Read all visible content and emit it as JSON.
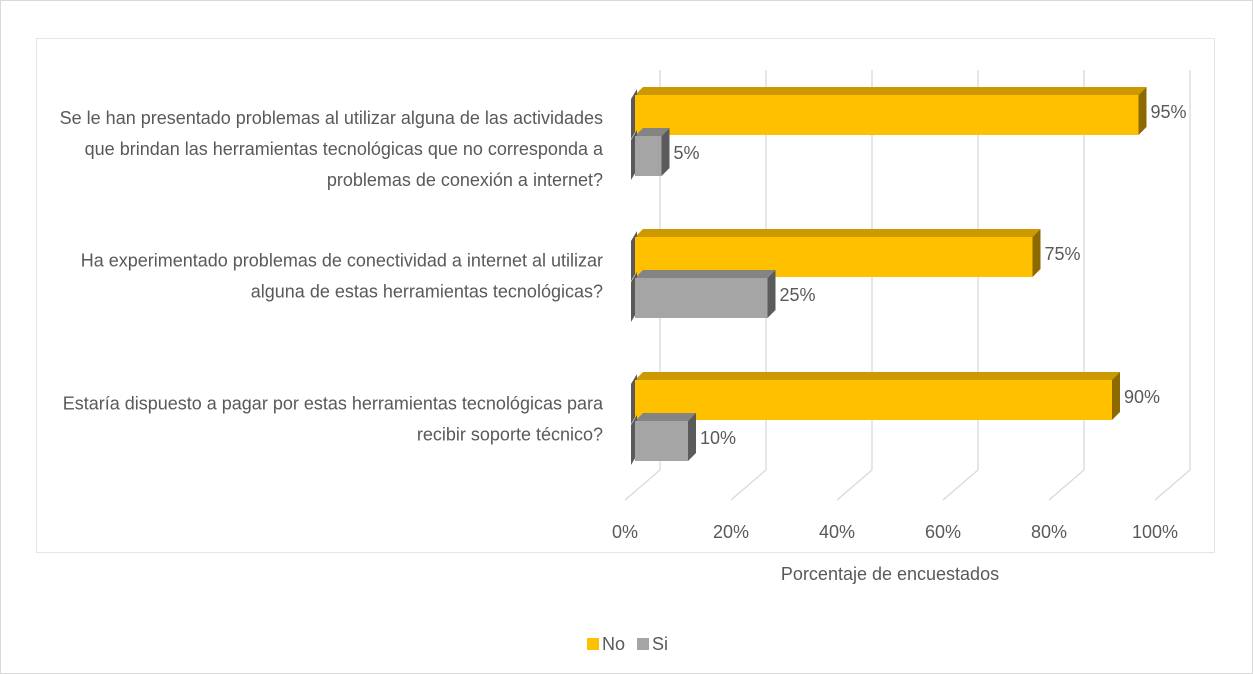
{
  "chart_data": {
    "type": "bar3d_horizontal",
    "categories": [
      "Se le han presentado problemas al utilizar alguna de las actividades que brindan las herramientas tecnológicas que no corresponda a problemas de conexión a internet?",
      "Ha experimentado problemas de conectividad a internet al utilizar alguna de estas herramientas tecnológicas?",
      "Estaría dispuesto a pagar por estas herramientas tecnológicas para recibir soporte técnico?"
    ],
    "series": [
      {
        "name": "No",
        "color": "#FFC000",
        "values": [
          95,
          75,
          90
        ],
        "value_labels": [
          "95%",
          "75%",
          "90%"
        ]
      },
      {
        "name": "Si",
        "color": "#A5A5A5",
        "values": [
          5,
          25,
          10
        ],
        "value_labels": [
          "5%",
          "25%",
          "10%"
        ]
      }
    ],
    "xlim": [
      0,
      100
    ],
    "xticks": [
      {
        "value": 0,
        "label": "0%"
      },
      {
        "value": 20,
        "label": "20%"
      },
      {
        "value": 40,
        "label": "40%"
      },
      {
        "value": 60,
        "label": "60%"
      },
      {
        "value": 80,
        "label": "80%"
      },
      {
        "value": 100,
        "label": "100%"
      }
    ],
    "xlabel": "Porcentaje de encuestados",
    "grid": true,
    "legend": "bottom"
  }
}
